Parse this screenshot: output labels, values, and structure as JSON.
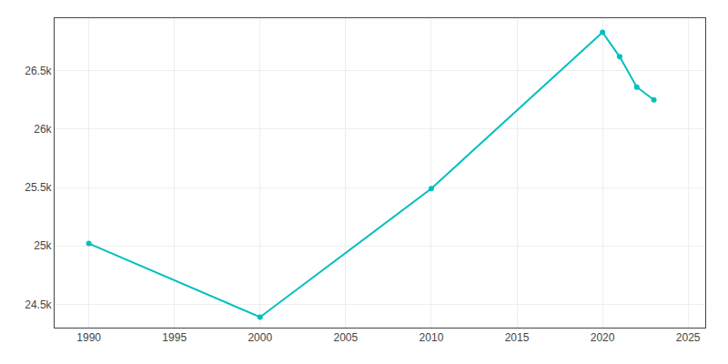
{
  "chart_data": {
    "type": "line",
    "x": [
      1990,
      2000,
      2010,
      2020,
      2021,
      2022,
      2023
    ],
    "values": [
      25020,
      24390,
      25490,
      26830,
      26620,
      26360,
      26250
    ],
    "color": "#00BFBF",
    "marker": "circle",
    "line_style": "solid",
    "xlim": [
      1988,
      2026
    ],
    "ylim": [
      24300,
      26950
    ],
    "xticks": [
      1990,
      1995,
      2000,
      2005,
      2010,
      2015,
      2020,
      2025
    ],
    "yticks": [
      {
        "value": 24500,
        "label": "24.5k"
      },
      {
        "value": 25000,
        "label": "25k"
      },
      {
        "value": 25500,
        "label": "25.5k"
      },
      {
        "value": 26000,
        "label": "26k"
      },
      {
        "value": 26500,
        "label": "26.5k"
      }
    ],
    "grid": true
  }
}
